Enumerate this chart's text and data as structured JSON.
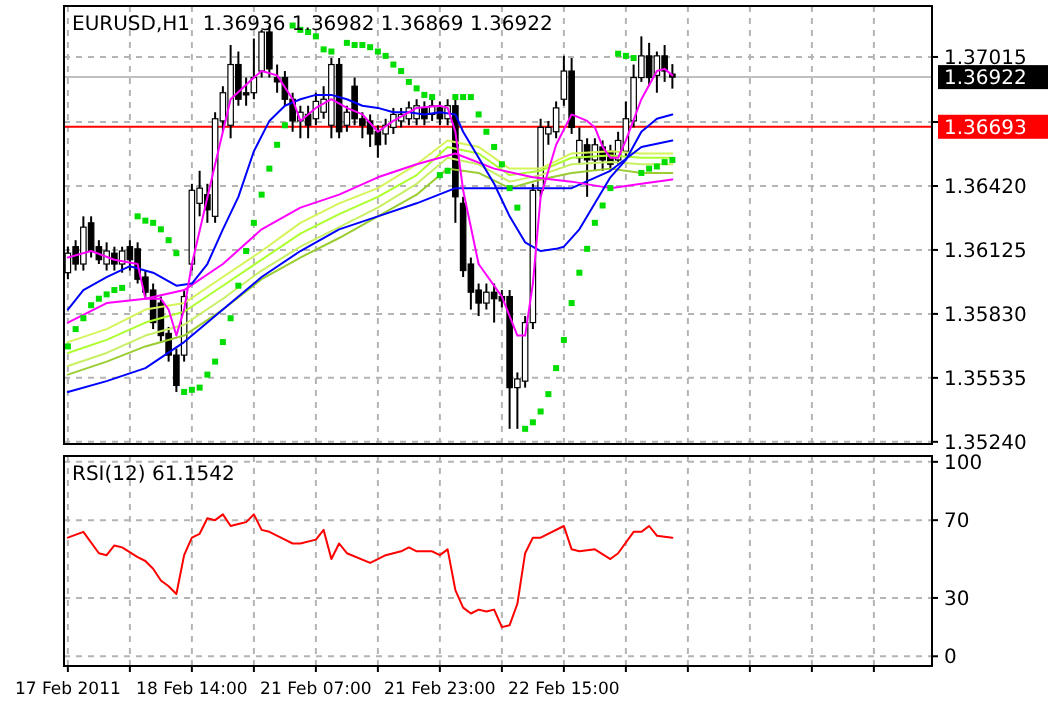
{
  "chart_data": [
    {
      "type": "candlestick",
      "title": "EURUSD,H1  1.36936 1.36982 1.36869 1.36922",
      "ylim": [
        1.3523,
        1.3725
      ],
      "grid": true,
      "tick_labels": "y",
      "categories": [
        null,
        null,
        null,
        null,
        null,
        null,
        null,
        null,
        null,
        null,
        null,
        null,
        null,
        null,
        null,
        null,
        null,
        null,
        null,
        null,
        null,
        null,
        null,
        null,
        null,
        null,
        null,
        null,
        null,
        null,
        null,
        null,
        null,
        null,
        null,
        null,
        null,
        null,
        null,
        null,
        null,
        null,
        null,
        null,
        null,
        null,
        null,
        null,
        null,
        null,
        null,
        null,
        null,
        null,
        null,
        null,
        null,
        null,
        null,
        null,
        null,
        null,
        null,
        null,
        null,
        null,
        null,
        null,
        null,
        null,
        null,
        null,
        null,
        null,
        null,
        null,
        null,
        null,
        null,
        null,
        null,
        null,
        null,
        null,
        null,
        null,
        null,
        null,
        null,
        null,
        null,
        null,
        null,
        null,
        null,
        null,
        null,
        null,
        null,
        null,
        null,
        null,
        null,
        null,
        null,
        null,
        null,
        null,
        null,
        null,
        null,
        null
      ],
      "yticks": [
        {
          "value": 1.3524,
          "label": "1.35240"
        },
        {
          "value": 1.35535,
          "label": "1.35535"
        },
        {
          "value": 1.3583,
          "label": "1.35830"
        },
        {
          "value": 1.36125,
          "label": "1.36125"
        },
        {
          "value": 1.3642,
          "label": "1.36420"
        },
        {
          "value": 1.36715,
          "label": null
        },
        {
          "value": 1.37015,
          "label": "1.37015"
        }
      ],
      "ref_lines": [
        {
          "axis": "y",
          "value": 1.36922,
          "label": "1.36922",
          "color": "#c0c0c0"
        },
        {
          "axis": "y",
          "value": 1.36693,
          "label": "1.36693",
          "color": "#ff0000"
        }
      ],
      "ohlc": [
        [
          1.3602,
          1.3614,
          1.3599,
          1.3611
        ],
        [
          1.3614,
          1.3617,
          1.3603,
          1.3606
        ],
        [
          1.3606,
          1.3628,
          1.3603,
          1.3623
        ],
        [
          1.3625,
          1.3628,
          1.3609,
          1.3612
        ],
        [
          1.3614,
          1.3617,
          1.3606,
          1.3608
        ],
        [
          1.3606,
          1.3616,
          1.3603,
          1.3612
        ],
        [
          1.3611,
          1.3614,
          1.3603,
          1.3606
        ],
        [
          1.3606,
          1.3614,
          1.3602,
          1.3612
        ],
        [
          1.3614,
          1.3617,
          1.3603,
          1.3608
        ],
        [
          1.3613,
          1.3616,
          1.3597,
          1.3599
        ],
        [
          1.36,
          1.3603,
          1.359,
          1.3593
        ],
        [
          1.3594,
          1.3597,
          1.3576,
          1.3579
        ],
        [
          1.3588,
          1.3591,
          1.357,
          1.3573
        ],
        [
          1.3574,
          1.3577,
          1.3561,
          1.3564
        ],
        [
          1.3564,
          1.3567,
          1.3547,
          1.355
        ],
        [
          1.3564,
          1.3594,
          1.3561,
          1.3591
        ],
        [
          1.3606,
          1.3643,
          1.3603,
          1.364
        ],
        [
          1.3634,
          1.3649,
          1.3628,
          1.3641
        ],
        [
          1.3638,
          1.3643,
          1.3625,
          1.3631
        ],
        [
          1.3628,
          1.3676,
          1.3625,
          1.3673
        ],
        [
          1.3672,
          1.3688,
          1.3667,
          1.3685
        ],
        [
          1.367,
          1.3707,
          1.3664,
          1.3698
        ],
        [
          1.3698,
          1.3704,
          1.3679,
          1.3682
        ],
        [
          1.3685,
          1.3692,
          1.3679,
          1.3684
        ],
        [
          1.3685,
          1.371,
          1.3682,
          1.3692
        ],
        [
          1.3695,
          1.3714,
          1.3692,
          1.3713
        ],
        [
          1.3713,
          1.3716,
          1.3692,
          1.3696
        ],
        [
          1.3692,
          1.3698,
          1.3685,
          1.369
        ],
        [
          1.3692,
          1.3695,
          1.3679,
          1.3682
        ],
        [
          1.3682,
          1.3685,
          1.3667,
          1.3672
        ],
        [
          1.3672,
          1.3679,
          1.3664,
          1.3676
        ],
        [
          1.3675,
          1.3679,
          1.3664,
          1.367
        ],
        [
          1.3673,
          1.3685,
          1.367,
          1.3681
        ],
        [
          1.3676,
          1.3688,
          1.3673,
          1.3682
        ],
        [
          1.367,
          1.3701,
          1.3664,
          1.3698
        ],
        [
          1.3698,
          1.3701,
          1.3664,
          1.3667
        ],
        [
          1.367,
          1.3679,
          1.3667,
          1.3676
        ],
        [
          1.3688,
          1.3692,
          1.367,
          1.3673
        ],
        [
          1.3673,
          1.3676,
          1.3664,
          1.367
        ],
        [
          1.3672,
          1.3675,
          1.366,
          1.3666
        ],
        [
          1.3667,
          1.367,
          1.3655,
          1.3661
        ],
        [
          1.3666,
          1.3673,
          1.3661,
          1.367
        ],
        [
          1.3669,
          1.3678,
          1.3666,
          1.3675
        ],
        [
          1.3672,
          1.3678,
          1.3669,
          1.3675
        ],
        [
          1.3673,
          1.3681,
          1.367,
          1.3678
        ],
        [
          1.3673,
          1.3682,
          1.367,
          1.3679
        ],
        [
          1.3678,
          1.3681,
          1.367,
          1.3673
        ],
        [
          1.3675,
          1.3682,
          1.3672,
          1.3679
        ],
        [
          1.3678,
          1.3681,
          1.367,
          1.3673
        ],
        [
          1.3673,
          1.3682,
          1.367,
          1.3679
        ],
        [
          1.3679,
          1.3682,
          1.3625,
          1.3637
        ],
        [
          1.3634,
          1.3637,
          1.36,
          1.3603
        ],
        [
          1.3606,
          1.3609,
          1.3585,
          1.3593
        ],
        [
          1.3594,
          1.3597,
          1.3582,
          1.3588
        ],
        [
          1.3588,
          1.3597,
          1.3585,
          1.3593
        ],
        [
          1.3593,
          1.3597,
          1.3579,
          1.359
        ],
        [
          1.3591,
          1.3594,
          1.3586,
          1.3589
        ],
        [
          1.3591,
          1.3594,
          1.353,
          1.3549
        ],
        [
          1.3549,
          1.3556,
          1.353,
          1.3553
        ],
        [
          1.3552,
          1.3582,
          1.3549,
          1.3579
        ],
        [
          1.3579,
          1.3643,
          1.3576,
          1.364
        ],
        [
          1.364,
          1.3673,
          1.3637,
          1.3669
        ],
        [
          1.3666,
          1.3672,
          1.3661,
          1.3669
        ],
        [
          1.3667,
          1.3681,
          1.3664,
          1.3678
        ],
        [
          1.3682,
          1.3702,
          1.3679,
          1.3695
        ],
        [
          1.3695,
          1.3701,
          1.3666,
          1.3669
        ],
        [
          1.3655,
          1.3669,
          1.3652,
          1.3663
        ],
        [
          1.3661,
          1.3664,
          1.3637,
          1.3654
        ],
        [
          1.3654,
          1.3664,
          1.3649,
          1.3661
        ],
        [
          1.366,
          1.3663,
          1.3649,
          1.3654
        ],
        [
          1.3658,
          1.3661,
          1.3649,
          1.3652
        ],
        [
          1.3654,
          1.3667,
          1.3652,
          1.3663
        ],
        [
          1.3658,
          1.3681,
          1.3655,
          1.3673
        ],
        [
          1.3672,
          1.3698,
          1.3669,
          1.3692
        ],
        [
          1.3692,
          1.3711,
          1.369,
          1.3702
        ],
        [
          1.3702,
          1.3708,
          1.3688,
          1.3692
        ],
        [
          1.3693,
          1.3704,
          1.3685,
          1.3702
        ],
        [
          1.3702,
          1.3707,
          1.369,
          1.3695
        ],
        [
          1.36936,
          1.36982,
          1.36869,
          1.36922
        ],
        null,
        null,
        null,
        null,
        null,
        null,
        null,
        null,
        null,
        null,
        null,
        null,
        null,
        null,
        null,
        null,
        null,
        null,
        null,
        null,
        null,
        null,
        null,
        null,
        null,
        null,
        null,
        null,
        null,
        null,
        null,
        null,
        null
      ],
      "series": [
        {
          "type": "line",
          "color": "#d4f55a",
          "values": [
            1.357,
            null,
            null,
            null,
            null,
            1.3576,
            null,
            null,
            null,
            null,
            1.3585,
            null,
            null,
            null,
            null,
            1.3588,
            null,
            null,
            null,
            null,
            1.36,
            null,
            null,
            null,
            null,
            1.3612,
            null,
            null,
            null,
            null,
            1.3625,
            null,
            null,
            null,
            null,
            1.3634,
            null,
            null,
            null,
            null,
            1.3641,
            null,
            null,
            null,
            null,
            1.3652,
            null,
            null,
            null,
            1.3663,
            null,
            null,
            null,
            1.366,
            null,
            null,
            null,
            1.365,
            null,
            null,
            null,
            1.365,
            null,
            null,
            null,
            1.3657,
            null,
            null,
            null,
            null,
            1.3658,
            null,
            null,
            null,
            1.3657,
            null,
            null,
            null,
            1.3657,
            null,
            null,
            null,
            null,
            null,
            null,
            null,
            null,
            null,
            null,
            null,
            null,
            null,
            null,
            null,
            null,
            null,
            null,
            null,
            null,
            null,
            null,
            null,
            null,
            null,
            null,
            null,
            null,
            null,
            null,
            null,
            null,
            null
          ]
        },
        {
          "type": "line",
          "color": "#adff2f",
          "values": [
            1.3565,
            null,
            null,
            null,
            null,
            1.3571,
            null,
            null,
            null,
            null,
            1.3579,
            null,
            null,
            null,
            null,
            1.3584,
            null,
            null,
            null,
            null,
            1.3596,
            null,
            null,
            null,
            null,
            1.3608,
            null,
            null,
            null,
            null,
            1.362,
            null,
            null,
            null,
            null,
            1.3629,
            null,
            null,
            null,
            null,
            1.3637,
            null,
            null,
            null,
            null,
            1.3647,
            null,
            null,
            null,
            1.366,
            null,
            null,
            null,
            1.3657,
            null,
            null,
            null,
            1.3647,
            null,
            null,
            null,
            1.3649,
            null,
            null,
            null,
            1.3655,
            null,
            null,
            null,
            null,
            1.3656,
            null,
            null,
            null,
            1.3655,
            null,
            null,
            null,
            1.3655,
            null,
            null,
            null,
            null,
            null,
            null,
            null,
            null,
            null,
            null,
            null,
            null,
            null,
            null,
            null,
            null,
            null,
            null,
            null,
            null,
            null,
            null,
            null,
            null,
            null,
            null,
            null,
            null,
            null,
            null,
            null,
            null,
            null
          ]
        },
        {
          "type": "line",
          "color": "#c8f064",
          "values": [
            1.3559,
            null,
            null,
            null,
            null,
            1.3565,
            null,
            null,
            null,
            null,
            1.3573,
            null,
            null,
            null,
            null,
            1.3578,
            null,
            null,
            null,
            null,
            1.359,
            null,
            null,
            null,
            null,
            1.3603,
            null,
            null,
            null,
            null,
            1.3614,
            null,
            null,
            null,
            null,
            1.3623,
            null,
            null,
            null,
            null,
            1.3632,
            null,
            null,
            null,
            null,
            1.3643,
            null,
            null,
            null,
            1.3655,
            null,
            null,
            null,
            1.3652,
            null,
            null,
            null,
            1.3644,
            null,
            null,
            null,
            1.3647,
            null,
            null,
            null,
            1.3652,
            null,
            null,
            null,
            null,
            1.3653,
            null,
            null,
            null,
            1.3652,
            null,
            null,
            null,
            1.3652,
            null,
            null,
            null,
            null,
            null,
            null,
            null,
            null,
            null,
            null,
            null,
            null,
            null,
            null,
            null,
            null,
            null,
            null,
            null,
            null,
            null,
            null,
            null,
            null,
            null,
            null,
            null,
            null,
            null,
            null,
            null,
            null,
            null
          ]
        },
        {
          "type": "line",
          "color": "#9acd32",
          "values": [
            1.3555,
            null,
            null,
            null,
            null,
            1.3561,
            null,
            null,
            null,
            null,
            1.3568,
            null,
            null,
            null,
            null,
            1.3573,
            null,
            null,
            null,
            null,
            1.3585,
            null,
            null,
            null,
            null,
            1.3599,
            null,
            null,
            null,
            null,
            1.3609,
            null,
            null,
            null,
            null,
            1.3618,
            null,
            null,
            null,
            null,
            1.3628,
            null,
            null,
            null,
            null,
            1.3638,
            null,
            null,
            null,
            1.365,
            null,
            null,
            null,
            1.3648,
            null,
            null,
            null,
            1.3641,
            null,
            null,
            null,
            1.3645,
            null,
            null,
            null,
            1.3648,
            null,
            null,
            null,
            null,
            1.365,
            null,
            null,
            null,
            1.3648,
            null,
            null,
            null,
            1.3648,
            null,
            null,
            null,
            null,
            null,
            null,
            null,
            null,
            null,
            null,
            null,
            null,
            null,
            null,
            null,
            null,
            null,
            null,
            null,
            null,
            null,
            null,
            null,
            null,
            null,
            null,
            null,
            null,
            null,
            null,
            null,
            null,
            null
          ]
        },
        {
          "type": "line",
          "color": "#0000ff",
          "values": [
            1.3547,
            null,
            null,
            null,
            null,
            1.3552,
            null,
            null,
            null,
            null,
            1.3558,
            null,
            null,
            null,
            null,
            1.357,
            null,
            null,
            null,
            null,
            1.3585,
            null,
            null,
            null,
            null,
            1.36,
            null,
            null,
            null,
            null,
            1.3612,
            null,
            null,
            null,
            null,
            1.3622,
            null,
            null,
            null,
            null,
            1.3628,
            null,
            null,
            null,
            null,
            1.3634,
            null,
            null,
            null,
            null,
            1.3641,
            null,
            null,
            null,
            null,
            1.3641,
            null,
            null,
            null,
            null,
            1.3641,
            null,
            null,
            null,
            null,
            1.3641,
            null,
            null,
            null,
            null,
            1.3649,
            null,
            null,
            null,
            1.366,
            null,
            null,
            null,
            1.3663,
            null,
            null,
            null,
            null,
            null,
            null,
            null,
            null,
            null,
            null,
            null,
            null,
            null,
            null,
            null,
            null,
            null,
            null,
            null,
            null,
            null,
            null,
            null,
            null,
            null,
            null,
            null,
            null,
            null,
            null,
            null,
            null,
            null
          ]
        },
        {
          "type": "line",
          "color": "#ff00ff",
          "values": [
            1.3579,
            null,
            null,
            null,
            null,
            1.3588,
            null,
            null,
            null,
            null,
            1.359,
            null,
            null,
            null,
            null,
            1.3594,
            null,
            null,
            null,
            null,
            1.3606,
            null,
            null,
            null,
            null,
            1.3622,
            null,
            null,
            null,
            null,
            1.3632,
            null,
            null,
            null,
            null,
            1.3638,
            null,
            null,
            null,
            null,
            1.3646,
            null,
            null,
            null,
            null,
            1.3652,
            null,
            null,
            null,
            null,
            1.3657,
            null,
            null,
            null,
            null,
            1.365,
            null,
            null,
            null,
            null,
            1.3646,
            null,
            null,
            null,
            null,
            1.3644,
            null,
            null,
            null,
            null,
            1.3641,
            null,
            null,
            null,
            1.3643,
            null,
            null,
            null,
            1.3645,
            null,
            null,
            null,
            null,
            null,
            null,
            null,
            null,
            null,
            null,
            null,
            null,
            null,
            null,
            null,
            null,
            null,
            null,
            null,
            null,
            null,
            null,
            null,
            null,
            null,
            null,
            null,
            null,
            null,
            null,
            null,
            null,
            null
          ]
        },
        {
          "type": "line",
          "color": "#0000ff",
          "values": [
            1.3585,
            null,
            1.3594,
            null,
            null,
            1.36,
            null,
            null,
            1.3605,
            null,
            null,
            1.3602,
            null,
            null,
            1.3596,
            null,
            1.3597,
            null,
            1.3606,
            null,
            1.3622,
            null,
            1.3637,
            null,
            1.3658,
            null,
            1.3672,
            null,
            1.3679,
            null,
            1.3682,
            null,
            1.3684,
            null,
            1.3684,
            null,
            1.3682,
            null,
            1.3679,
            null,
            1.3678,
            null,
            1.3676,
            null,
            1.3676,
            null,
            1.3675,
            null,
            1.3676,
            null,
            1.3675,
            1.3667,
            null,
            1.3655,
            null,
            1.3643,
            null,
            1.3628,
            null,
            1.3616,
            null,
            1.3612,
            null,
            1.3613,
            1.3614,
            null,
            1.3622,
            null,
            1.3634,
            null,
            1.3646,
            null,
            1.3654,
            null,
            1.3667,
            null,
            1.3673,
            null,
            1.3675,
            null,
            null,
            null,
            null,
            null,
            null,
            null,
            null,
            null,
            null,
            null,
            null,
            null,
            null,
            null,
            null,
            null,
            null,
            null,
            null,
            null,
            null,
            null,
            null,
            null,
            null,
            null,
            null,
            null,
            null,
            null,
            null,
            null
          ]
        },
        {
          "type": "line",
          "color": "#ff00ff",
          "values": [
            1.3609,
            null,
            null,
            1.3612,
            null,
            null,
            1.3608,
            null,
            null,
            1.3606,
            1.359,
            null,
            1.359,
            1.3585,
            1.3573,
            1.3585,
            1.3606,
            null,
            null,
            1.3652,
            null,
            1.3682,
            null,
            null,
            1.3692,
            1.3695,
            null,
            1.3693,
            null,
            1.3682,
            1.3672,
            null,
            1.3678,
            null,
            1.3682,
            null,
            1.3678,
            null,
            1.3675,
            null,
            1.3667,
            null,
            1.3672,
            null,
            null,
            1.3678,
            null,
            null,
            1.3679,
            1.3678,
            1.3667,
            1.364,
            null,
            1.3606,
            null,
            null,
            1.3591,
            1.3582,
            1.3573,
            1.3573,
            1.3597,
            1.3637,
            null,
            1.3661,
            null,
            1.3675,
            null,
            1.3672,
            1.3669,
            1.366,
            1.3655,
            1.3655,
            1.3663,
            null,
            1.3682,
            null,
            1.3695,
            1.3696,
            1.3693,
            null,
            null,
            null,
            null,
            null,
            null,
            null,
            null,
            null,
            null,
            null,
            null,
            null,
            null,
            null,
            null,
            null,
            null,
            null,
            null,
            null,
            null,
            null,
            null,
            null,
            null,
            null,
            null,
            null,
            null,
            null,
            null,
            null
          ]
        },
        {
          "type": "scatter",
          "marker": "square",
          "color": "#00dd00",
          "values": [
            1.3568,
            1.3576,
            1.3581,
            1.3587,
            1.359,
            1.3592,
            1.3594,
            1.3595,
            null,
            1.3628,
            1.3626,
            1.3625,
            1.3622,
            1.3617,
            1.3611,
            1.3547,
            1.3548,
            1.3549,
            1.3555,
            1.3561,
            1.357,
            1.3581,
            1.3596,
            1.3612,
            1.3625,
            1.3638,
            1.365,
            1.3661,
            1.367,
            1.3716,
            1.3714,
            1.3713,
            1.3711,
            1.3705,
            1.3704,
            null,
            1.3708,
            1.3707,
            1.3707,
            1.3706,
            1.3704,
            1.3702,
            1.3698,
            1.3695,
            1.369,
            1.3687,
            1.3684,
            1.3683,
            1.3647,
            1.3649,
            1.3683,
            1.3683,
            1.3683,
            1.3675,
            1.3667,
            1.366,
            1.3652,
            1.3641,
            1.3632,
            1.353,
            1.3533,
            1.3538,
            1.3546,
            1.3558,
            1.3571,
            1.3588,
            1.3602,
            1.3613,
            1.3625,
            1.3633,
            1.3641,
            1.3703,
            1.3702,
            1.3701,
            1.3648,
            1.365,
            1.3651,
            1.3653,
            1.3654,
            null,
            null,
            null,
            null,
            null,
            null,
            null,
            null,
            null,
            null,
            null,
            null,
            null,
            null,
            null,
            null,
            null,
            null,
            null,
            null,
            null,
            null,
            null,
            null,
            null,
            null,
            null,
            null,
            null,
            null,
            null,
            null,
            null
          ]
        }
      ]
    },
    {
      "type": "line",
      "title": "RSI(12) 61.1542",
      "color": "#ff0000",
      "ylim": [
        -5,
        103
      ],
      "yticks": [
        0,
        30,
        70,
        100
      ],
      "grid": true,
      "categories": [
        "17 Feb 2011",
        null,
        null,
        null,
        null,
        null,
        null,
        null,
        null,
        null,
        null,
        null,
        null,
        null,
        null,
        null,
        "18 Feb 14:00",
        null,
        null,
        null,
        null,
        null,
        null,
        null,
        null,
        null,
        null,
        null,
        null,
        null,
        null,
        null,
        "21 Feb 07:00",
        null,
        null,
        null,
        null,
        null,
        null,
        null,
        null,
        null,
        null,
        null,
        null,
        null,
        null,
        null,
        "21 Feb 23:00",
        null,
        null,
        null,
        null,
        null,
        null,
        null,
        null,
        null,
        null,
        null,
        null,
        null,
        null,
        null,
        "22 Feb 15:00",
        null,
        null,
        null,
        null,
        null,
        null,
        null,
        null,
        null,
        null,
        null,
        null,
        null,
        null,
        null,
        null,
        null,
        null,
        null,
        null,
        null,
        null,
        null,
        null,
        null,
        null,
        null,
        null,
        null,
        null,
        null,
        null,
        null,
        null,
        null,
        null,
        null,
        null,
        null,
        null,
        null,
        null,
        null,
        null,
        null,
        null,
        null
      ],
      "values": [
        61,
        null,
        64,
        null,
        53,
        52,
        57,
        56,
        null,
        51,
        49,
        45,
        39,
        36,
        32,
        52,
        61,
        63,
        71,
        70,
        73,
        67,
        68,
        69,
        73,
        65,
        64,
        null,
        60,
        58,
        58,
        null,
        60,
        65,
        50,
        58,
        53,
        null,
        null,
        48,
        50,
        52,
        null,
        54,
        56,
        54,
        null,
        54,
        52,
        55,
        34,
        25,
        22,
        24,
        23,
        24,
        15,
        16,
        27,
        53,
        61,
        61,
        null,
        null,
        67,
        55,
        54,
        null,
        55,
        null,
        50,
        53,
        null,
        64,
        64,
        67,
        62,
        null,
        61,
        null,
        null,
        null,
        null,
        null,
        null,
        null,
        null,
        null,
        null,
        null,
        null,
        null,
        null,
        null,
        null,
        null,
        null,
        null,
        null,
        null,
        null,
        null,
        null,
        null,
        null,
        null,
        null,
        null,
        null,
        null,
        null,
        null
      ]
    }
  ]
}
